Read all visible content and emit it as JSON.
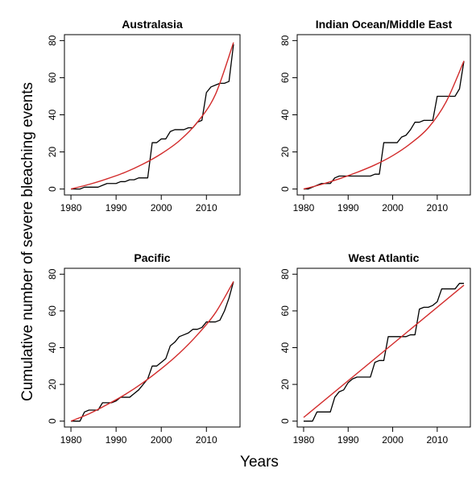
{
  "figure": {
    "ylabel": "Cumulative number of severe bleaching events",
    "xlabel": "Years"
  },
  "chart_data": [
    {
      "type": "line",
      "title": "Australasia",
      "xlim": [
        1980,
        2016
      ],
      "ylim": [
        0,
        80
      ],
      "xticks": [
        1980,
        1990,
        2000,
        2010
      ],
      "yticks": [
        0,
        20,
        40,
        60,
        80
      ],
      "colors": {
        "observed": "#000000",
        "fit": "#d22b2b"
      },
      "series": [
        {
          "values_x": [
            1980,
            1981,
            1982,
            1983,
            1984,
            1985,
            1986,
            1987,
            1988,
            1989,
            1990,
            1991,
            1992,
            1993,
            1994,
            1995,
            1996,
            1997,
            1998,
            1999,
            2000,
            2001,
            2002,
            2003,
            2004,
            2005,
            2006,
            2007,
            2008,
            2009,
            2010,
            2011,
            2012,
            2013,
            2014,
            2015,
            2016
          ],
          "values_y": [
            0,
            0,
            0,
            1,
            1,
            1,
            1,
            2,
            3,
            3,
            3,
            4,
            4,
            5,
            5,
            6,
            6,
            6,
            25,
            25,
            27,
            27,
            31,
            32,
            32,
            32,
            33,
            33,
            36,
            37,
            52,
            55,
            56,
            57,
            57,
            58,
            78
          ]
        },
        {
          "kind": "exponential fit",
          "values_x": [
            1980,
            1984,
            1988,
            1992,
            1996,
            2000,
            2004,
            2008,
            2012,
            2016
          ],
          "values_y": [
            0,
            2.5,
            5.5,
            9,
            13.5,
            19,
            26,
            36,
            51,
            79
          ]
        }
      ]
    },
    {
      "type": "line",
      "title": "Indian Ocean/Middle East",
      "xlim": [
        1980,
        2016
      ],
      "ylim": [
        0,
        80
      ],
      "xticks": [
        1980,
        1990,
        2000,
        2010
      ],
      "yticks": [
        0,
        20,
        40,
        60,
        80
      ],
      "colors": {
        "observed": "#000000",
        "fit": "#d22b2b"
      },
      "series": [
        {
          "values_x": [
            1980,
            1981,
            1982,
            1983,
            1984,
            1985,
            1986,
            1987,
            1988,
            1989,
            1990,
            1991,
            1992,
            1993,
            1994,
            1995,
            1996,
            1997,
            1998,
            1999,
            2000,
            2001,
            2002,
            2003,
            2004,
            2005,
            2006,
            2007,
            2008,
            2009,
            2010,
            2011,
            2012,
            2013,
            2014,
            2015,
            2016
          ],
          "values_y": [
            0,
            0,
            1,
            2,
            3,
            3,
            3,
            6,
            7,
            7,
            7,
            7,
            7,
            7,
            7,
            7,
            8,
            8,
            25,
            25,
            25,
            25,
            28,
            29,
            32,
            36,
            36,
            37,
            37,
            37,
            50,
            50,
            50,
            50,
            50,
            54,
            69
          ]
        },
        {
          "kind": "exponential fit",
          "values_x": [
            1980,
            1984,
            1988,
            1992,
            1996,
            2000,
            2004,
            2008,
            2012,
            2016
          ],
          "values_y": [
            0,
            2.5,
            5.5,
            9,
            13,
            18,
            24.5,
            33,
            47,
            69
          ]
        }
      ]
    },
    {
      "type": "line",
      "title": "Pacific",
      "xlim": [
        1980,
        2016
      ],
      "ylim": [
        0,
        80
      ],
      "xticks": [
        1980,
        1990,
        2000,
        2010
      ],
      "yticks": [
        0,
        20,
        40,
        60,
        80
      ],
      "colors": {
        "observed": "#000000",
        "fit": "#d22b2b"
      },
      "series": [
        {
          "values_x": [
            1980,
            1981,
            1982,
            1983,
            1984,
            1985,
            1986,
            1987,
            1988,
            1989,
            1990,
            1991,
            1992,
            1993,
            1994,
            1995,
            1996,
            1997,
            1998,
            1999,
            2000,
            2001,
            2002,
            2003,
            2004,
            2005,
            2006,
            2007,
            2008,
            2009,
            2010,
            2011,
            2012,
            2013,
            2014,
            2015,
            2016
          ],
          "values_y": [
            0,
            0,
            0,
            5,
            6,
            6,
            6,
            10,
            10,
            10,
            11,
            13,
            13,
            13,
            15,
            17,
            20,
            23,
            30,
            30,
            32,
            34,
            41,
            43,
            46,
            47,
            48,
            50,
            50,
            51,
            54,
            54,
            54,
            55,
            60,
            67,
            76
          ]
        },
        {
          "kind": "exponential fit",
          "values_x": [
            1980,
            1984,
            1988,
            1992,
            1996,
            2000,
            2004,
            2008,
            2012,
            2016
          ],
          "values_y": [
            0,
            4,
            9,
            14.5,
            21,
            28.5,
            37,
            47,
            59,
            76
          ]
        }
      ]
    },
    {
      "type": "line",
      "title": "West Atlantic",
      "xlim": [
        1980,
        2016
      ],
      "ylim": [
        0,
        80
      ],
      "xticks": [
        1980,
        1990,
        2000,
        2010
      ],
      "yticks": [
        0,
        20,
        40,
        60,
        80
      ],
      "colors": {
        "observed": "#000000",
        "fit": "#d22b2b"
      },
      "series": [
        {
          "values_x": [
            1980,
            1981,
            1982,
            1983,
            1984,
            1985,
            1986,
            1987,
            1988,
            1989,
            1990,
            1991,
            1992,
            1993,
            1994,
            1995,
            1996,
            1997,
            1998,
            1999,
            2000,
            2001,
            2002,
            2003,
            2004,
            2005,
            2006,
            2007,
            2008,
            2009,
            2010,
            2011,
            2012,
            2013,
            2014,
            2015,
            2016
          ],
          "values_y": [
            0,
            0,
            0,
            5,
            5,
            5,
            5,
            13,
            16,
            17,
            21,
            23,
            24,
            24,
            24,
            24,
            32,
            33,
            33,
            46,
            46,
            46,
            46,
            46,
            47,
            47,
            61,
            62,
            62,
            63,
            65,
            72,
            72,
            72,
            72,
            75,
            75
          ]
        },
        {
          "kind": "linear fit",
          "values_x": [
            1980,
            2016
          ],
          "values_y": [
            2,
            74
          ]
        }
      ]
    }
  ]
}
